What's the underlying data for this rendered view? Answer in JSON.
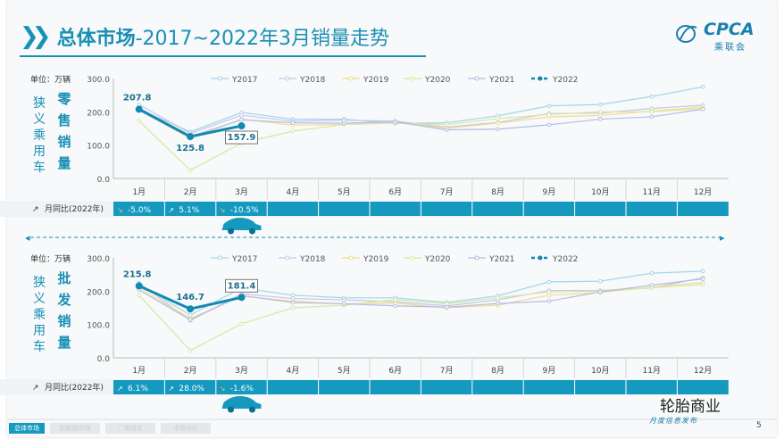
{
  "header": {
    "title_main": "总体市场",
    "title_rest": "-2017~2022年3月销量走势"
  },
  "logo": {
    "name": "CPCA",
    "sub": "乘联会"
  },
  "months": [
    "1月",
    "2月",
    "3月",
    "4月",
    "5月",
    "6月",
    "7月",
    "8月",
    "9月",
    "10月",
    "11月",
    "12月"
  ],
  "unit": "单位：万辆",
  "side_label": "狭义乘用车",
  "colors": {
    "Y2017": "#9fd6ea",
    "Y2018": "#c4c6ec",
    "Y2019": "#f4dc8c",
    "Y2020": "#d6e8a2",
    "Y2021": "#b2bde6",
    "Y2022": "#118ab2",
    "bar": "#1599bf"
  },
  "chart_data": [
    {
      "type": "line",
      "id": "retail",
      "ylabel": "零售销量",
      "ylim": [
        0,
        300
      ],
      "yticks": [
        "0.0",
        "100.0",
        "200.0",
        "300.0"
      ],
      "categories": [
        "1月",
        "2月",
        "3月",
        "4月",
        "5月",
        "6月",
        "7月",
        "8月",
        "9月",
        "10月",
        "11月",
        "12月"
      ],
      "series": [
        {
          "name": "Y2017",
          "values": [
            208,
            140,
            198,
            178,
            178,
            165,
            167,
            188,
            218,
            222,
            246,
            275
          ]
        },
        {
          "name": "Y2018",
          "values": [
            222,
            135,
            190,
            172,
            175,
            172,
            154,
            168,
            195,
            196,
            210,
            220
          ]
        },
        {
          "name": "Y2019",
          "values": [
            205,
            120,
            178,
            160,
            162,
            168,
            151,
            166,
            185,
            189,
            202,
            215
          ]
        },
        {
          "name": "Y2020",
          "values": [
            173,
            25,
            106,
            142,
            162,
            166,
            162,
            180,
            192,
            200,
            200,
            210
          ]
        },
        {
          "name": "Y2021",
          "values": [
            212,
            126,
            176,
            167,
            166,
            170,
            146,
            148,
            161,
            178,
            185,
            208
          ]
        },
        {
          "name": "Y2022",
          "values": [
            207.8,
            125.8,
            157.9
          ]
        }
      ],
      "labels": [
        "207.8",
        "125.8",
        "157.9"
      ],
      "yoy_label": "月同比(2022年)",
      "yoy": [
        {
          "dir": "down",
          "text": "-5.0%"
        },
        {
          "dir": "up",
          "text": "5.1%"
        },
        {
          "dir": "down",
          "text": "-10.5%"
        }
      ]
    },
    {
      "type": "line",
      "id": "wholesale",
      "ylabel": "批发销量",
      "ylim": [
        0,
        300
      ],
      "yticks": [
        "0.0",
        "100.0",
        "200.0",
        "300.0"
      ],
      "categories": [
        "1月",
        "2月",
        "3月",
        "4月",
        "5月",
        "6月",
        "7月",
        "8月",
        "9月",
        "10月",
        "11月",
        "12月"
      ],
      "series": [
        {
          "name": "Y2017",
          "values": [
            222,
            128,
            210,
            188,
            180,
            180,
            166,
            186,
            228,
            230,
            254,
            260
          ]
        },
        {
          "name": "Y2018",
          "values": [
            225,
            112,
            192,
            178,
            174,
            168,
            156,
            174,
            202,
            202,
            210,
            240
          ]
        },
        {
          "name": "Y2019",
          "values": [
            210,
            118,
            185,
            170,
            162,
            164,
            150,
            158,
            188,
            196,
            212,
            226
          ]
        },
        {
          "name": "Y2020",
          "values": [
            188,
            22,
            102,
            150,
            158,
            175,
            162,
            180,
            198,
            200,
            210,
            220
          ]
        },
        {
          "name": "Y2021",
          "values": [
            204,
            114,
            187,
            166,
            162,
            156,
            152,
            163,
            170,
            198,
            218,
            237
          ]
        },
        {
          "name": "Y2022",
          "values": [
            215.8,
            146.7,
            181.4
          ]
        }
      ],
      "labels": [
        "215.8",
        "146.7",
        "181.4"
      ],
      "yoy_label": "月同比(2022年)",
      "yoy": [
        {
          "dir": "up",
          "text": "6.1%"
        },
        {
          "dir": "up",
          "text": "28.0%"
        },
        {
          "dir": "down",
          "text": "-1.6%"
        }
      ]
    }
  ],
  "footer": {
    "tabs": [
      "总体市场",
      "新能源市场",
      "厂商排名",
      "市场分析"
    ],
    "brand": "轮胎商业",
    "report": "月度信息发布",
    "page": "5"
  }
}
